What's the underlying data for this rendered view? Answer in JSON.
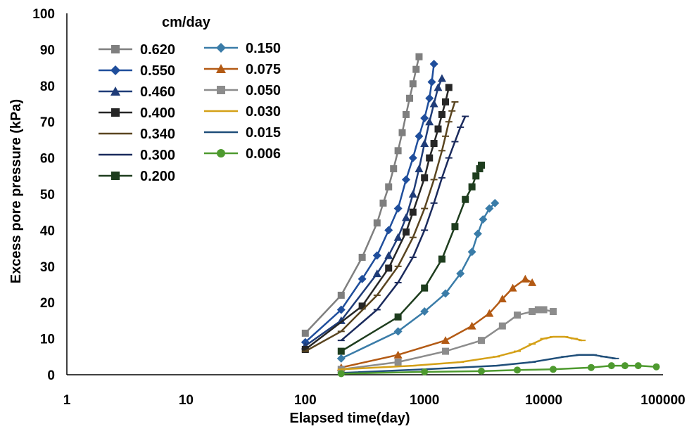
{
  "chart_data": {
    "type": "line",
    "title": "",
    "xlabel": "Elapsed time(day)",
    "ylabel": "Excess pore  pressure (kPa)",
    "xscale": "log",
    "xlim": [
      1,
      100000
    ],
    "ylim": [
      0,
      100
    ],
    "x_ticks": [
      "1",
      "10",
      "100",
      "1000",
      "10000",
      "100000"
    ],
    "y_ticks": [
      "0",
      "10",
      "20",
      "30",
      "40",
      "50",
      "60",
      "70",
      "80",
      "90",
      "100"
    ],
    "grid": false,
    "legend_title": "cm/day",
    "legend_position": "top-left",
    "series": [
      {
        "name": "0.620",
        "color": "#7f7f7f",
        "marker": "square",
        "x": [
          100,
          200,
          300,
          400,
          450,
          500,
          550,
          600,
          650,
          700,
          750,
          800,
          850,
          900
        ],
        "y": [
          11.5,
          22,
          32.5,
          42,
          47.5,
          52,
          57,
          62,
          67,
          72,
          76.5,
          80.5,
          84.5,
          88
        ]
      },
      {
        "name": "0.550",
        "color": "#1f4e9c",
        "marker": "diamond",
        "x": [
          100,
          200,
          300,
          400,
          500,
          600,
          700,
          800,
          900,
          1000,
          1100,
          1150,
          1200
        ],
        "y": [
          9,
          18,
          26.5,
          33,
          40,
          46,
          54,
          60,
          66,
          71,
          76.5,
          81,
          86
        ]
      },
      {
        "name": "0.460",
        "color": "#1f3c78",
        "marker": "triangle",
        "x": [
          100,
          200,
          400,
          500,
          600,
          700,
          800,
          900,
          1000,
          1100,
          1200,
          1300,
          1400
        ],
        "y": [
          8,
          15,
          28,
          33,
          38,
          43.5,
          50,
          57,
          64,
          70,
          75,
          79.5,
          82
        ]
      },
      {
        "name": "0.400",
        "color": "#262626",
        "marker": "square",
        "x": [
          100,
          300,
          500,
          700,
          800,
          1000,
          1100,
          1200,
          1300,
          1400,
          1500,
          1600
        ],
        "y": [
          7,
          19,
          29.5,
          39.5,
          45,
          54.5,
          60,
          64,
          68,
          72,
          75.5,
          79.5
        ]
      },
      {
        "name": "0.340",
        "color": "#5a4520",
        "marker": "dash",
        "x": [
          100,
          200,
          400,
          600,
          800,
          1000,
          1200,
          1400,
          1500,
          1600,
          1700,
          1800
        ],
        "y": [
          6.5,
          12,
          22,
          30,
          38,
          46,
          54,
          62,
          66,
          70,
          73,
          75.5
        ]
      },
      {
        "name": "0.300",
        "color": "#1a2a5c",
        "marker": "dash",
        "x": [
          200,
          400,
          600,
          800,
          1000,
          1200,
          1400,
          1600,
          1800,
          2000,
          2200
        ],
        "y": [
          9.5,
          18,
          25.5,
          32.5,
          40,
          47.5,
          54.5,
          60,
          64.5,
          68.5,
          71.5
        ]
      },
      {
        "name": "0.200",
        "color": "#1e3d1e",
        "marker": "square",
        "x": [
          200,
          600,
          1000,
          1400,
          1800,
          2200,
          2500,
          2700,
          2900,
          3000
        ],
        "y": [
          6.5,
          16,
          24,
          32,
          41,
          48.5,
          52,
          55,
          57,
          58
        ]
      },
      {
        "name": "0.150",
        "color": "#3a7ca8",
        "marker": "diamond",
        "x": [
          200,
          600,
          1000,
          1500,
          2000,
          2500,
          2800,
          3100,
          3500,
          3900
        ],
        "y": [
          4.5,
          12,
          17.5,
          22.5,
          28,
          34,
          39,
          43,
          46,
          47.5
        ]
      },
      {
        "name": "0.075",
        "color": "#b35a14",
        "marker": "triangle",
        "x": [
          200,
          600,
          1500,
          2500,
          3500,
          4500,
          5500,
          7000,
          8000
        ],
        "y": [
          2,
          5.5,
          9.5,
          13.5,
          17,
          21,
          24,
          26.5,
          25.5
        ]
      },
      {
        "name": "0.050",
        "color": "#8c8c8c",
        "marker": "square",
        "x": [
          200,
          600,
          1500,
          3000,
          4500,
          6000,
          8000,
          9000,
          10000,
          12000
        ],
        "y": [
          1.5,
          3.5,
          6.5,
          9.5,
          13.5,
          16.5,
          17.5,
          18,
          18,
          17.5
        ]
      },
      {
        "name": "0.030",
        "color": "#d4a017",
        "marker": "dash",
        "x": [
          200,
          800,
          2000,
          4000,
          6000,
          8000,
          10000,
          12000,
          15000,
          18000,
          21000
        ],
        "y": [
          1.5,
          2.5,
          3.5,
          5,
          6.5,
          8.5,
          10,
          10.5,
          10.5,
          10,
          9.5
        ]
      },
      {
        "name": "0.015",
        "color": "#1f4e79",
        "marker": "dash",
        "x": [
          200,
          1000,
          4000,
          8000,
          15000,
          20000,
          26000,
          32000,
          40000
        ],
        "y": [
          0.5,
          1.5,
          2.5,
          3.5,
          5,
          5.5,
          5.5,
          5,
          4.5
        ]
      },
      {
        "name": "0.006",
        "color": "#4e9a2f",
        "marker": "circle",
        "x": [
          200,
          1000,
          3000,
          6000,
          12000,
          25000,
          37000,
          48000,
          62000,
          88000
        ],
        "y": [
          0.3,
          0.8,
          1,
          1.3,
          1.5,
          2,
          2.5,
          2.5,
          2.5,
          2.2
        ]
      }
    ]
  }
}
